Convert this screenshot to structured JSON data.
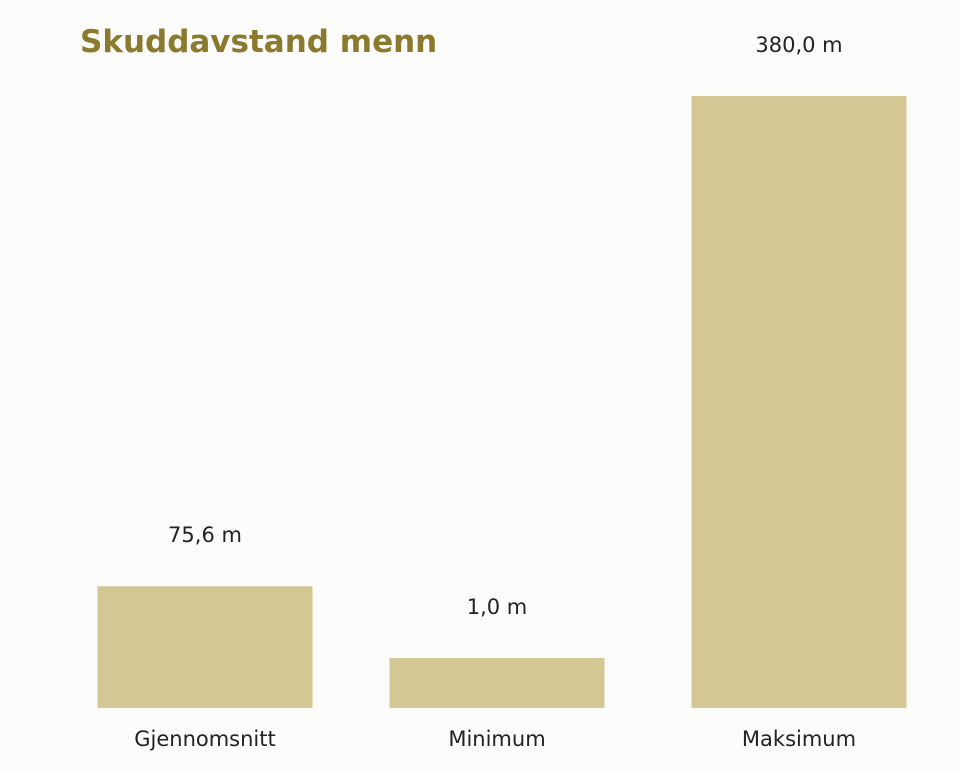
{
  "colors": {
    "title": "#8b7a2e",
    "bar": "#d3c794",
    "text": "#222222",
    "background": "#fbfbf9"
  },
  "chart_data": {
    "type": "bar",
    "title": "Skuddavstand menn",
    "xlabel": "",
    "ylabel": "",
    "unit": "m",
    "categories": [
      "Gjennomsnitt",
      "Minimum",
      "Maksimum"
    ],
    "values": [
      75.6,
      1.0,
      380.0
    ],
    "data_labels": [
      "75,6 m",
      "1,0 m",
      "380,0 m"
    ],
    "ylim": [
      0,
      380
    ],
    "grid": false,
    "legend": "none"
  }
}
